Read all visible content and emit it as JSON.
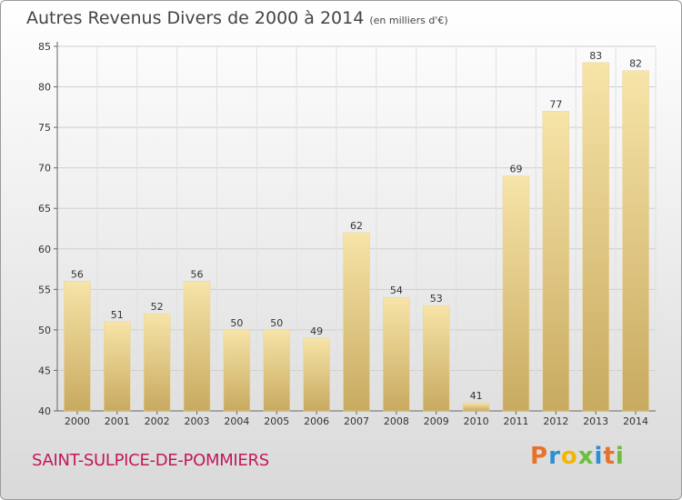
{
  "title": "Autres Revenus Divers de 2000 à 2014",
  "unit": "(en milliers d'€)",
  "commune": "SAINT-SULPICE-DE-POMMIERS",
  "logo": {
    "text": "Proxiti",
    "colors": [
      "#e6732b",
      "#2a8fd6",
      "#f2b705",
      "#6cbf3a",
      "#2a8fd6",
      "#e6732b",
      "#6cbf3a"
    ]
  },
  "colors": {
    "bar_light": "#f6e2a6",
    "bar_dark": "#c9ab62",
    "grid": "#cccccc",
    "commune": "#c2185b"
  },
  "chart_data": {
    "type": "bar",
    "categories": [
      "2000",
      "2001",
      "2002",
      "2003",
      "2004",
      "2005",
      "2006",
      "2007",
      "2008",
      "2009",
      "2010",
      "2011",
      "2012",
      "2013",
      "2014"
    ],
    "values": [
      56,
      51,
      52,
      56,
      50,
      50,
      49,
      62,
      54,
      53,
      41,
      69,
      77,
      83,
      82
    ],
    "ylim": [
      40,
      85
    ],
    "yticks": [
      40,
      45,
      50,
      55,
      60,
      65,
      70,
      75,
      80,
      85
    ],
    "grid": true
  }
}
